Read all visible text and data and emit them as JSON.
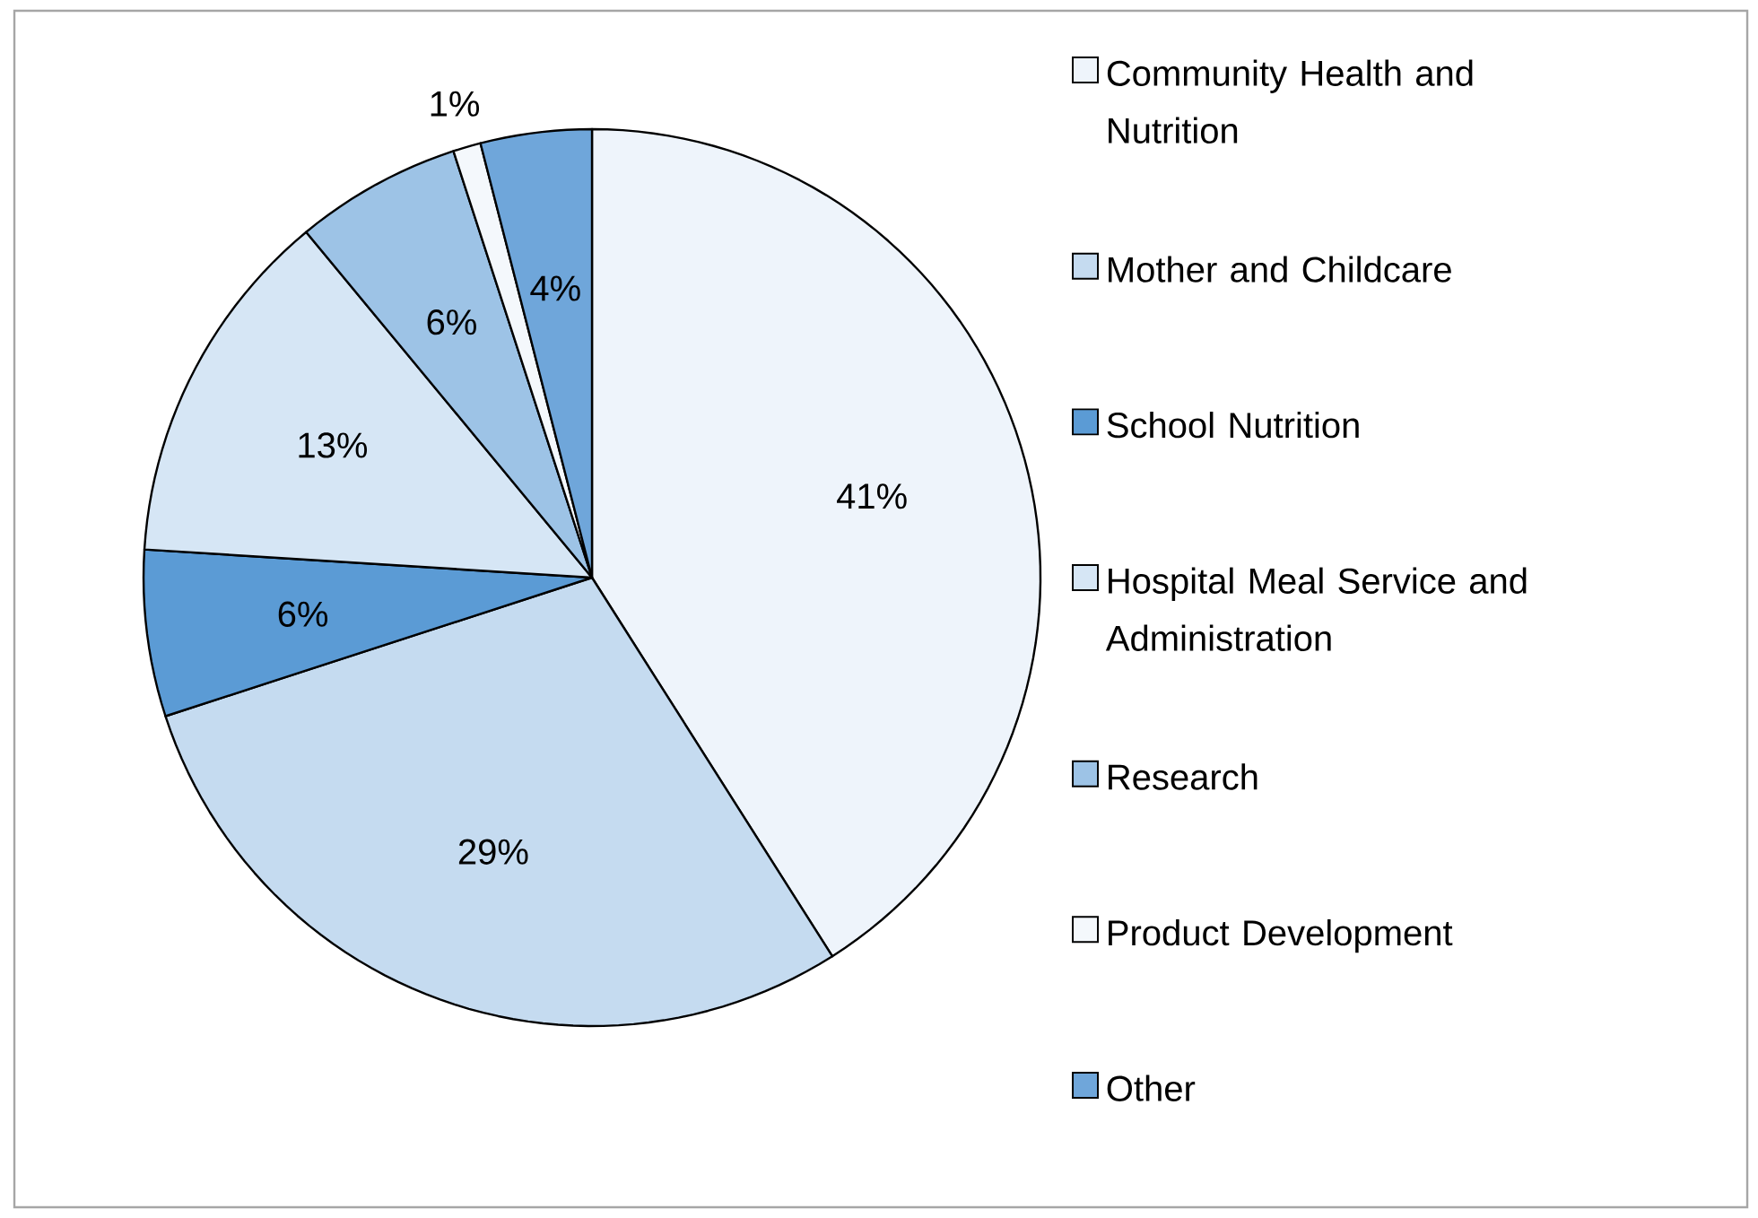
{
  "chart_data": {
    "type": "pie",
    "categories": [
      "Community Health and Nutrition",
      "Mother and Childcare",
      "School Nutrition",
      "Hospital Meal Service and Administration",
      "Research",
      "Product Development",
      "Other"
    ],
    "values": [
      41,
      29,
      6,
      13,
      6,
      1,
      4
    ],
    "value_labels": [
      "41%",
      "29%",
      "6%",
      "13%",
      "6%",
      "1%",
      "4%"
    ],
    "colors": [
      "#eef4fb",
      "#c5dbf0",
      "#5b9bd5",
      "#d6e6f5",
      "#9dc3e6",
      "#f4f8fc",
      "#6fa6da"
    ],
    "legend": "right"
  }
}
